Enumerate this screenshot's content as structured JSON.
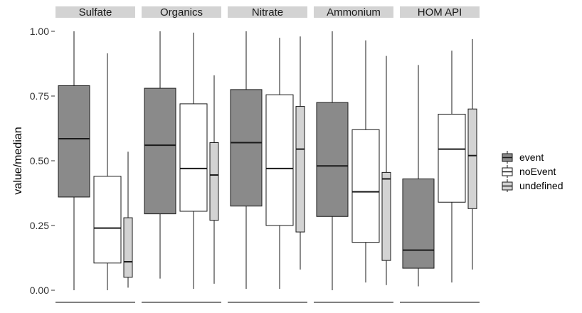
{
  "chart_data": {
    "type": "boxplot",
    "ylabel": "value/median",
    "xlabel": "",
    "ylim": [
      0,
      1
    ],
    "y_ticks": [
      "0.00",
      "0.25",
      "0.50",
      "0.75",
      "1.00"
    ],
    "grid": false,
    "legend_position": "right",
    "groups": [
      "event",
      "noEvent",
      "undefined"
    ],
    "colors": {
      "event": "#8a8a8a",
      "noEvent": "#ffffff",
      "undefined": "#d3d3d3",
      "strip": "#d3d3d3",
      "line": "#1a1a1a"
    },
    "panels": [
      {
        "name": "Sulfate",
        "boxes": [
          {
            "group": "event",
            "min": 0.0,
            "q1": 0.36,
            "median": 0.585,
            "q3": 0.79,
            "max": 1.0
          },
          {
            "group": "noEvent",
            "min": 0.0,
            "q1": 0.105,
            "median": 0.24,
            "q3": 0.44,
            "max": 0.915
          },
          {
            "group": "undefined",
            "min": 0.01,
            "q1": 0.05,
            "median": 0.11,
            "q3": 0.28,
            "max": 0.535
          }
        ]
      },
      {
        "name": "Organics",
        "boxes": [
          {
            "group": "event",
            "min": 0.045,
            "q1": 0.295,
            "median": 0.56,
            "q3": 0.78,
            "max": 1.0
          },
          {
            "group": "noEvent",
            "min": 0.005,
            "q1": 0.305,
            "median": 0.47,
            "q3": 0.72,
            "max": 0.995
          },
          {
            "group": "undefined",
            "min": 0.025,
            "q1": 0.27,
            "median": 0.445,
            "q3": 0.57,
            "max": 0.83
          }
        ]
      },
      {
        "name": "Nitrate",
        "boxes": [
          {
            "group": "event",
            "min": 0.005,
            "q1": 0.325,
            "median": 0.57,
            "q3": 0.775,
            "max": 1.0
          },
          {
            "group": "noEvent",
            "min": 0.005,
            "q1": 0.25,
            "median": 0.47,
            "q3": 0.755,
            "max": 0.975
          },
          {
            "group": "undefined",
            "min": 0.08,
            "q1": 0.225,
            "median": 0.545,
            "q3": 0.71,
            "max": 0.98
          }
        ]
      },
      {
        "name": "Ammonium",
        "boxes": [
          {
            "group": "event",
            "min": 0.0,
            "q1": 0.285,
            "median": 0.48,
            "q3": 0.725,
            "max": 1.0
          },
          {
            "group": "noEvent",
            "min": 0.03,
            "q1": 0.185,
            "median": 0.38,
            "q3": 0.62,
            "max": 0.965
          },
          {
            "group": "undefined",
            "min": 0.02,
            "q1": 0.115,
            "median": 0.43,
            "q3": 0.455,
            "max": 0.905
          }
        ]
      },
      {
        "name": "HOM_API",
        "boxes": [
          {
            "group": "event",
            "min": 0.015,
            "q1": 0.085,
            "median": 0.155,
            "q3": 0.43,
            "max": 0.87
          },
          {
            "group": "noEvent",
            "min": 0.03,
            "q1": 0.34,
            "median": 0.545,
            "q3": 0.68,
            "max": 0.925
          },
          {
            "group": "undefined",
            "min": 0.08,
            "q1": 0.315,
            "median": 0.52,
            "q3": 0.7,
            "max": 0.97
          }
        ]
      }
    ]
  }
}
